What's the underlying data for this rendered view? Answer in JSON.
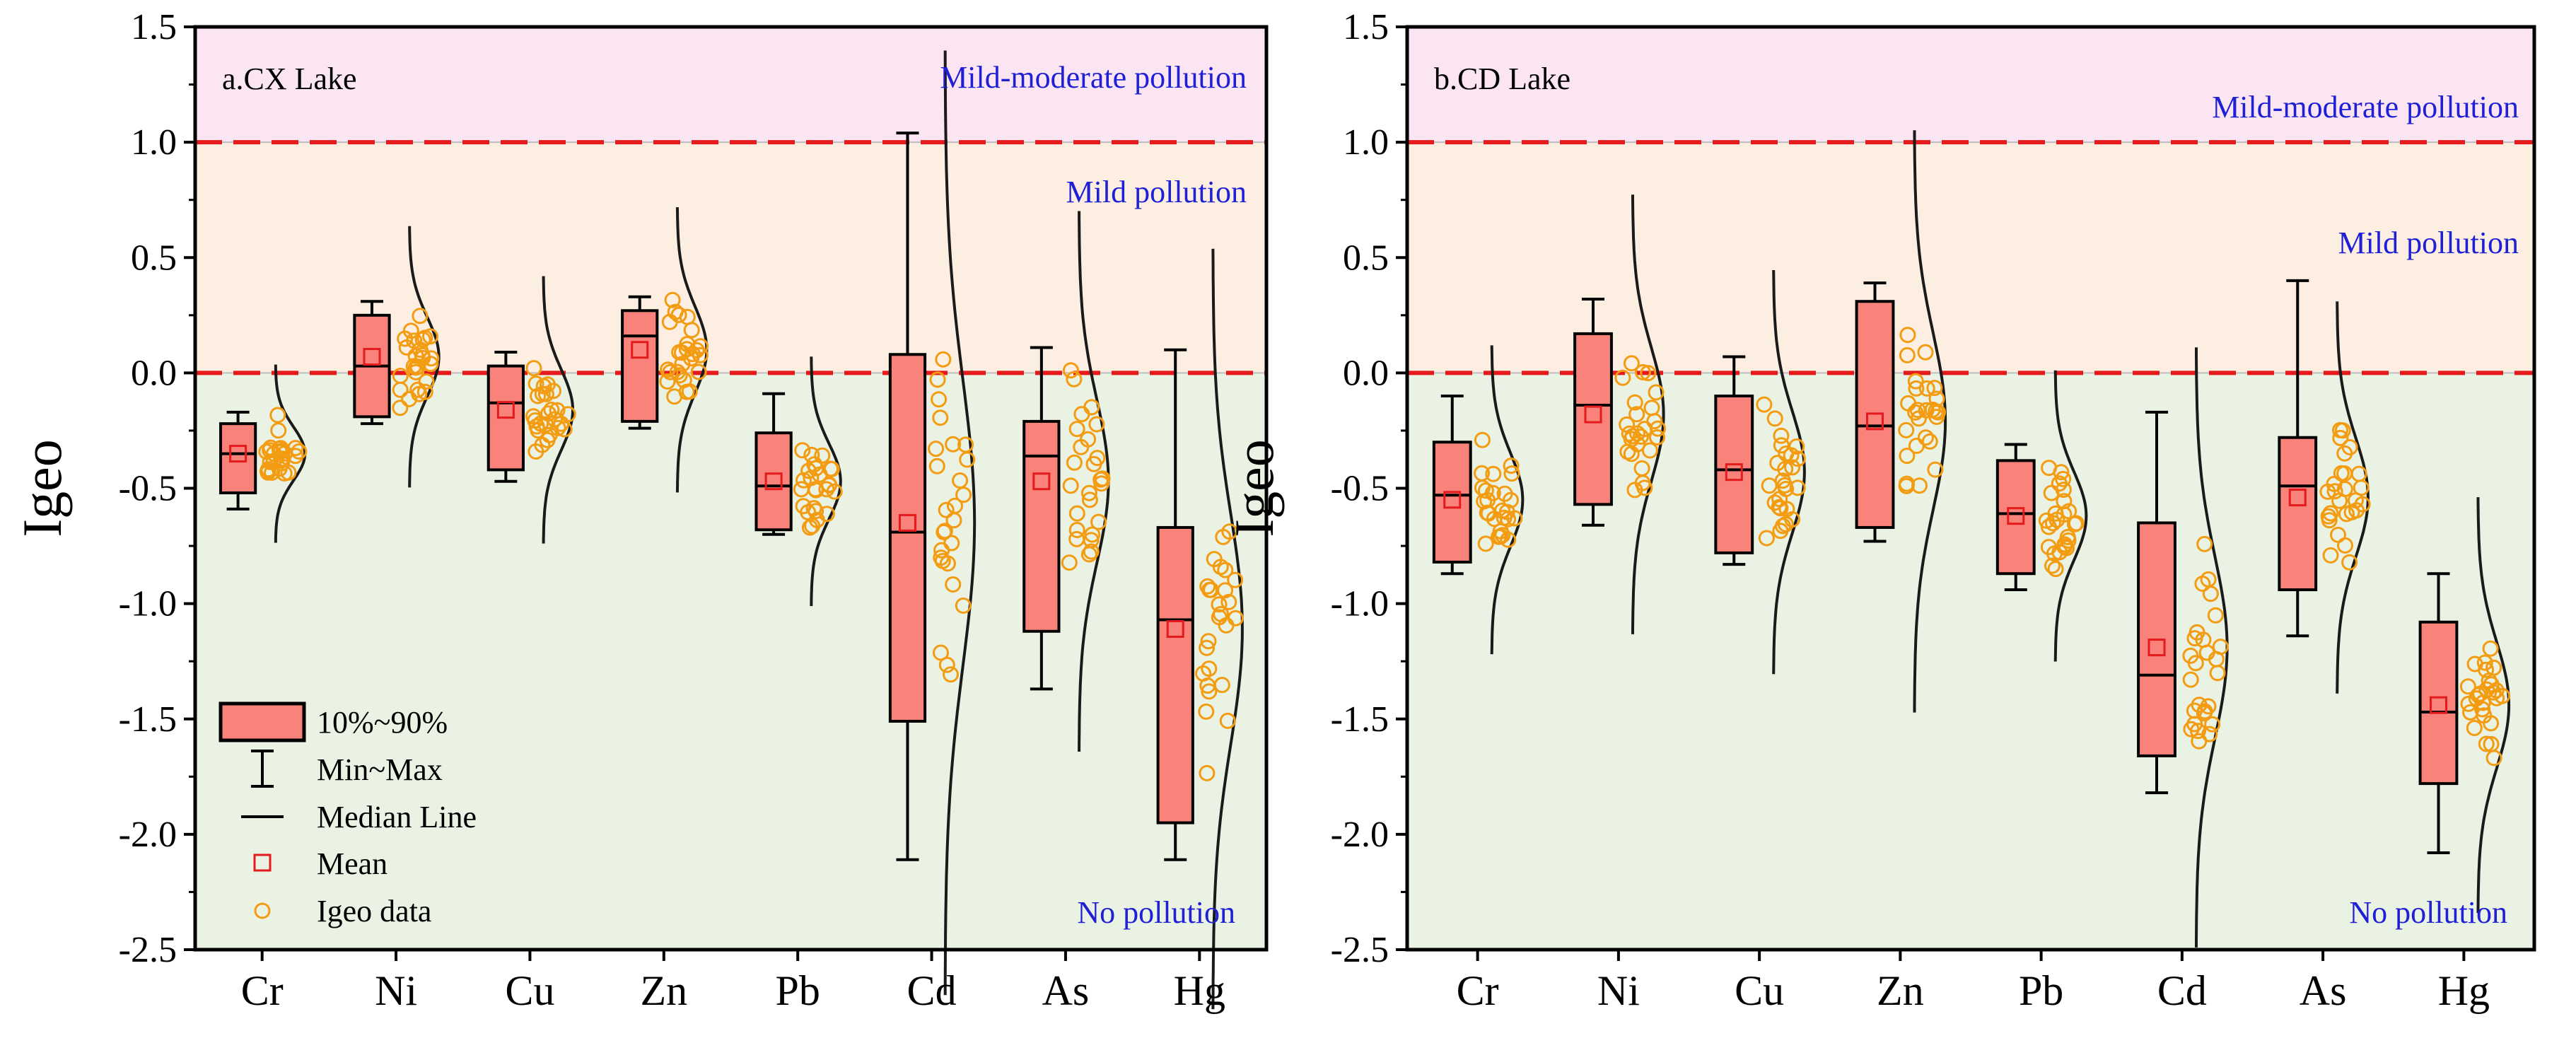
{
  "chart_data": {
    "type": "box",
    "ylabel": "Igeo",
    "ylim": [
      -2.5,
      1.5
    ],
    "yticks": [
      "1.5",
      "1.0",
      "0.5",
      "0.0",
      "-0.5",
      "-1.0",
      "-1.5",
      "-2.0",
      "-2.5"
    ],
    "ytick_values": [
      1.5,
      1.0,
      0.5,
      0.0,
      -0.5,
      -1.0,
      -1.5,
      -2.0,
      -2.5
    ],
    "categories": [
      "Cr",
      "Ni",
      "Cu",
      "Zn",
      "Pb",
      "Cd",
      "As",
      "Hg"
    ],
    "threshold_lines": [
      0.0,
      1.0
    ],
    "zone_colors": {
      "none": "#eaf2e3",
      "mild": "#fcefe2",
      "moderate": "#fbe5f2"
    },
    "box_color": "#f9837b",
    "point_color": "#f39c12",
    "mean_color": "#e41a1c",
    "threshold_color": "#e41a1c",
    "legend": {
      "box": "10%~90%",
      "whisker": "Min~Max",
      "median": "Median Line",
      "mean": "Mean",
      "points": "Igeo data"
    },
    "panels": [
      {
        "title": "a.CX Lake",
        "zones": {
          "moderate": "Mild-moderate pollution",
          "mild": "Mild pollution",
          "none": "No pollution"
        },
        "boxes": [
          {
            "name": "Cr",
            "min": -0.59,
            "q10": -0.52,
            "median": -0.35,
            "q90": -0.22,
            "max": -0.17,
            "mean": -0.35
          },
          {
            "name": "Ni",
            "min": -0.22,
            "q10": -0.19,
            "median": 0.03,
            "q90": 0.25,
            "max": 0.31,
            "mean": 0.07
          },
          {
            "name": "Cu",
            "min": -0.47,
            "q10": -0.42,
            "median": -0.13,
            "q90": 0.03,
            "max": 0.09,
            "mean": -0.16
          },
          {
            "name": "Zn",
            "min": -0.24,
            "q10": -0.21,
            "median": 0.16,
            "q90": 0.27,
            "max": 0.33,
            "mean": 0.1
          },
          {
            "name": "Pb",
            "min": -0.7,
            "q10": -0.68,
            "median": -0.49,
            "q90": -0.26,
            "max": -0.09,
            "mean": -0.47
          },
          {
            "name": "Cd",
            "min": -2.11,
            "q10": -1.51,
            "median": -0.69,
            "q90": 0.08,
            "max": 1.04,
            "mean": -0.65
          },
          {
            "name": "As",
            "min": -1.37,
            "q10": -1.12,
            "median": -0.36,
            "q90": -0.21,
            "max": 0.11,
            "mean": -0.47
          },
          {
            "name": "Hg",
            "min": -2.11,
            "q10": -1.95,
            "median": -1.07,
            "q90": -0.67,
            "max": 0.1,
            "mean": -1.11
          }
        ]
      },
      {
        "title": "b.CD Lake",
        "zones": {
          "moderate": "Mild-moderate pollution",
          "mild": "Mild pollution",
          "none": "No pollution"
        },
        "boxes": [
          {
            "name": "Cr",
            "min": -0.87,
            "q10": -0.82,
            "median": -0.53,
            "q90": -0.3,
            "max": -0.1,
            "mean": -0.55
          },
          {
            "name": "Ni",
            "min": -0.66,
            "q10": -0.57,
            "median": -0.14,
            "q90": 0.17,
            "max": 0.32,
            "mean": -0.18
          },
          {
            "name": "Cu",
            "min": -0.83,
            "q10": -0.78,
            "median": -0.42,
            "q90": -0.1,
            "max": 0.07,
            "mean": -0.43
          },
          {
            "name": "Zn",
            "min": -0.73,
            "q10": -0.67,
            "median": -0.23,
            "q90": 0.31,
            "max": 0.39,
            "mean": -0.21
          },
          {
            "name": "Pb",
            "min": -0.94,
            "q10": -0.87,
            "median": -0.61,
            "q90": -0.38,
            "max": -0.31,
            "mean": -0.62
          },
          {
            "name": "Cd",
            "min": -1.82,
            "q10": -1.66,
            "median": -1.31,
            "q90": -0.65,
            "max": -0.17,
            "mean": -1.19
          },
          {
            "name": "As",
            "min": -1.14,
            "q10": -0.94,
            "median": -0.49,
            "q90": -0.28,
            "max": 0.4,
            "mean": -0.54
          },
          {
            "name": "Hg",
            "min": -2.08,
            "q10": -1.78,
            "median": -1.47,
            "q90": -1.08,
            "max": -0.87,
            "mean": -1.44
          }
        ]
      }
    ]
  }
}
